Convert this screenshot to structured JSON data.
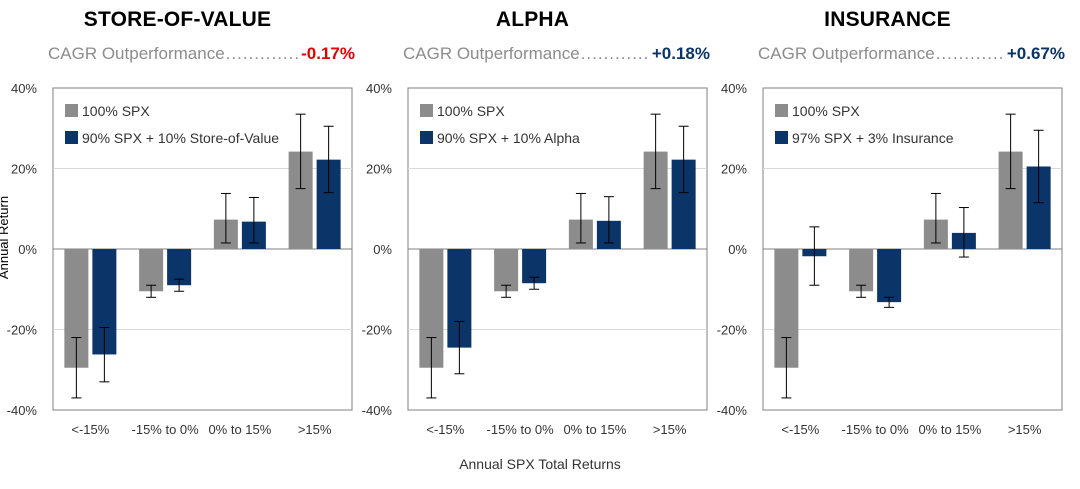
{
  "colors": {
    "spx": "#8c8c8c",
    "mix": "#0b3468",
    "negative": "#e60000",
    "positive": "#0b3468"
  },
  "common": {
    "y_axis_label": "Annual Return",
    "x_axis_title": "Annual SPX Total Returns",
    "cagr_label": "CAGR Outperformance",
    "cagr_dots": "................................................"
  },
  "chart_data": [
    {
      "type": "bar",
      "title": "STORE-OF-VALUE",
      "cagr_outperformance": "-0.17%",
      "cagr_sign": "negative",
      "categories": [
        "<-15%",
        "-15% to 0%",
        "0% to 15%",
        ">15%"
      ],
      "ylim": [
        -40,
        40
      ],
      "yticks": [
        -40,
        -20,
        0,
        20,
        40
      ],
      "ytick_labels": [
        "-40%",
        "-20%",
        "0%",
        "20%",
        "40%"
      ],
      "series": [
        {
          "name": "100% SPX",
          "values": [
            -29.5,
            -10.5,
            7.3,
            24.2
          ],
          "err_low": [
            -37.0,
            -12.0,
            1.5,
            15.0
          ],
          "err_high": [
            -22.0,
            -9.0,
            13.8,
            33.5
          ]
        },
        {
          "name": "90% SPX + 10% Store-of-Value",
          "values": [
            -26.2,
            -9.0,
            6.8,
            22.2
          ],
          "err_low": [
            -33.0,
            -10.5,
            1.5,
            14.0
          ],
          "err_high": [
            -19.5,
            -7.5,
            12.8,
            30.5
          ]
        }
      ]
    },
    {
      "type": "bar",
      "title": "ALPHA",
      "cagr_outperformance": "+0.18%",
      "cagr_sign": "positive",
      "categories": [
        "<-15%",
        "-15% to 0%",
        "0% to 15%",
        ">15%"
      ],
      "ylim": [
        -40,
        40
      ],
      "yticks": [
        -40,
        -20,
        0,
        20,
        40
      ],
      "ytick_labels": [
        "-40%",
        "-20%",
        "0%",
        "20%",
        "40%"
      ],
      "series": [
        {
          "name": "100% SPX",
          "values": [
            -29.5,
            -10.5,
            7.3,
            24.2
          ],
          "err_low": [
            -37.0,
            -12.0,
            1.5,
            15.0
          ],
          "err_high": [
            -22.0,
            -9.0,
            13.8,
            33.5
          ]
        },
        {
          "name": "90% SPX + 10% Alpha",
          "values": [
            -24.5,
            -8.5,
            7.0,
            22.2
          ],
          "err_low": [
            -31.0,
            -10.0,
            1.5,
            14.0
          ],
          "err_high": [
            -18.0,
            -7.0,
            13.0,
            30.5
          ]
        }
      ]
    },
    {
      "type": "bar",
      "title": "INSURANCE",
      "cagr_outperformance": "+0.67%",
      "cagr_sign": "positive",
      "categories": [
        "<-15%",
        "-15% to 0%",
        "0% to 15%",
        ">15%"
      ],
      "ylim": [
        -40,
        40
      ],
      "yticks": [
        -40,
        -20,
        0,
        20,
        40
      ],
      "ytick_labels": [
        "-40%",
        "-20%",
        "0%",
        "20%",
        "40%"
      ],
      "series": [
        {
          "name": "100% SPX",
          "values": [
            -29.5,
            -10.5,
            7.3,
            24.2
          ],
          "err_low": [
            -37.0,
            -12.0,
            1.5,
            15.0
          ],
          "err_high": [
            -22.0,
            -9.0,
            13.8,
            33.5
          ]
        },
        {
          "name": "97% SPX + 3% Insurance",
          "values": [
            -1.8,
            -13.2,
            4.0,
            20.5
          ],
          "err_low": [
            -9.0,
            -14.5,
            -2.0,
            11.5
          ],
          "err_high": [
            5.5,
            -12.0,
            10.3,
            29.5
          ]
        }
      ]
    }
  ]
}
